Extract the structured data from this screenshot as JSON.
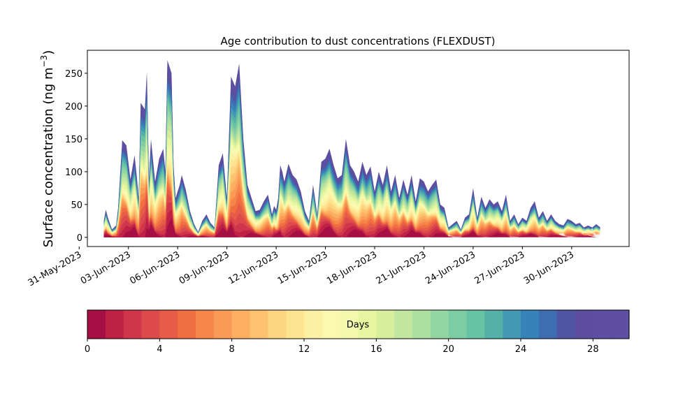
{
  "chart_data": {
    "type": "area",
    "title": "Age contribution to dust concentrations (FLEXDUST)",
    "ylabel_text": "Surface concentration (ng m",
    "ylabel_exp": "−3",
    "ylabel_close": ")",
    "xlabel": "",
    "x_axis_kind": "date",
    "xlim": [
      "2023-05-31T12:00",
      "2023-07-03T12:00"
    ],
    "ylim": [
      -14,
      285
    ],
    "yticks": [
      0,
      50,
      100,
      150,
      200,
      250
    ],
    "xticks": [
      {
        "date": "2023-05-31",
        "label": "31-May-2023"
      },
      {
        "date": "2023-06-03",
        "label": "03-Jun-2023"
      },
      {
        "date": "2023-06-06",
        "label": "06-Jun-2023"
      },
      {
        "date": "2023-06-09",
        "label": "09-Jun-2023"
      },
      {
        "date": "2023-06-12",
        "label": "12-Jun-2023"
      },
      {
        "date": "2023-06-15",
        "label": "15-Jun-2023"
      },
      {
        "date": "2023-06-18",
        "label": "18-Jun-2023"
      },
      {
        "date": "2023-06-21",
        "label": "21-Jun-2023"
      },
      {
        "date": "2023-06-24",
        "label": "24-Jun-2023"
      },
      {
        "date": "2023-06-27",
        "label": "27-Jun-2023"
      },
      {
        "date": "2023-06-30",
        "label": "30-Jun-2023"
      }
    ],
    "series_note": "stacked contributions by age; total concentration envelope listed",
    "total_dates": [
      "2023-06-01T12:00",
      "2023-06-01T15:00",
      "2023-06-01T18:00",
      "2023-06-02T00:00",
      "2023-06-02T06:00",
      "2023-06-02T09:00",
      "2023-06-02T15:00",
      "2023-06-02T21:00",
      "2023-06-03T03:00",
      "2023-06-03T09:00",
      "2023-06-03T12:00",
      "2023-06-03T15:00",
      "2023-06-03T18:00",
      "2023-06-04T00:00",
      "2023-06-04T03:00",
      "2023-06-04T06:00",
      "2023-06-04T09:00",
      "2023-06-04T15:00",
      "2023-06-04T21:00",
      "2023-06-05T03:00",
      "2023-06-05T06:00",
      "2023-06-05T09:00",
      "2023-06-05T15:00",
      "2023-06-05T18:00",
      "2023-06-05T21:00",
      "2023-06-06T03:00",
      "2023-06-06T06:00",
      "2023-06-06T12:00",
      "2023-06-06T18:00",
      "2023-06-07T00:00",
      "2023-06-07T06:00",
      "2023-06-07T12:00",
      "2023-06-07T18:00",
      "2023-06-08T00:00",
      "2023-06-08T06:00",
      "2023-06-08T12:00",
      "2023-06-08T18:00",
      "2023-06-09T00:00",
      "2023-06-09T06:00",
      "2023-06-09T12:00",
      "2023-06-09T18:00",
      "2023-06-10T00:00",
      "2023-06-10T06:00",
      "2023-06-10T12:00",
      "2023-06-10T18:00",
      "2023-06-11T00:00",
      "2023-06-11T06:00",
      "2023-06-11T12:00",
      "2023-06-11T18:00",
      "2023-06-11T21:00",
      "2023-06-12T00:00",
      "2023-06-12T03:00",
      "2023-06-12T06:00",
      "2023-06-12T09:00",
      "2023-06-12T12:00",
      "2023-06-12T18:00",
      "2023-06-13T00:00",
      "2023-06-13T06:00",
      "2023-06-13T12:00",
      "2023-06-13T18:00",
      "2023-06-14T00:00",
      "2023-06-14T06:00",
      "2023-06-14T12:00",
      "2023-06-14T18:00",
      "2023-06-15T00:00",
      "2023-06-15T06:00",
      "2023-06-15T12:00",
      "2023-06-15T18:00",
      "2023-06-16T00:00",
      "2023-06-16T06:00",
      "2023-06-16T12:00",
      "2023-06-16T18:00",
      "2023-06-17T00:00",
      "2023-06-17T06:00",
      "2023-06-17T12:00",
      "2023-06-17T18:00",
      "2023-06-18T00:00",
      "2023-06-18T06:00",
      "2023-06-18T12:00",
      "2023-06-18T18:00",
      "2023-06-19T00:00",
      "2023-06-19T06:00",
      "2023-06-19T12:00",
      "2023-06-19T18:00",
      "2023-06-20T00:00",
      "2023-06-20T06:00",
      "2023-06-20T12:00",
      "2023-06-20T18:00",
      "2023-06-21T00:00",
      "2023-06-21T06:00",
      "2023-06-21T12:00",
      "2023-06-21T18:00",
      "2023-06-22T00:00",
      "2023-06-22T06:00",
      "2023-06-22T12:00",
      "2023-06-22T18:00",
      "2023-06-23T00:00",
      "2023-06-23T06:00",
      "2023-06-23T12:00",
      "2023-06-23T18:00",
      "2023-06-24T00:00",
      "2023-06-24T06:00",
      "2023-06-24T12:00",
      "2023-06-24T18:00",
      "2023-06-25T00:00",
      "2023-06-25T06:00",
      "2023-06-25T12:00",
      "2023-06-25T18:00",
      "2023-06-26T00:00",
      "2023-06-26T06:00",
      "2023-06-26T12:00",
      "2023-06-26T18:00",
      "2023-06-27T00:00",
      "2023-06-27T06:00",
      "2023-06-27T12:00",
      "2023-06-27T18:00",
      "2023-06-28T00:00",
      "2023-06-28T06:00",
      "2023-06-28T12:00",
      "2023-06-28T18:00",
      "2023-06-29T00:00",
      "2023-06-29T06:00",
      "2023-06-29T12:00",
      "2023-06-29T18:00",
      "2023-06-30T00:00",
      "2023-06-30T06:00",
      "2023-06-30T12:00",
      "2023-06-30T18:00",
      "2023-07-01T00:00",
      "2023-07-01T06:00",
      "2023-07-01T12:00",
      "2023-07-01T18:00",
      "2023-07-02T00:00",
      "2023-07-02T06:00"
    ],
    "total_values": [
      25,
      42,
      30,
      12,
      18,
      45,
      148,
      140,
      88,
      125,
      95,
      60,
      205,
      195,
      252,
      90,
      150,
      85,
      120,
      135,
      100,
      270,
      250,
      110,
      60,
      80,
      95,
      72,
      40,
      20,
      8,
      25,
      35,
      22,
      15,
      110,
      128,
      60,
      245,
      230,
      265,
      150,
      80,
      60,
      40,
      42,
      55,
      65,
      35,
      48,
      42,
      60,
      110,
      100,
      85,
      112,
      95,
      88,
      70,
      40,
      25,
      80,
      35,
      115,
      120,
      135,
      110,
      90,
      95,
      150,
      110,
      100,
      85,
      115,
      95,
      108,
      70,
      100,
      80,
      110,
      70,
      95,
      60,
      88,
      65,
      95,
      55,
      90,
      85,
      70,
      80,
      88,
      50,
      45,
      15,
      20,
      25,
      12,
      30,
      35,
      75,
      30,
      62,
      45,
      58,
      50,
      55,
      40,
      65,
      25,
      35,
      20,
      30,
      25,
      45,
      55,
      30,
      40,
      25,
      35,
      25,
      20,
      18,
      28,
      25,
      20,
      22,
      15,
      18,
      15,
      20,
      15
    ],
    "colorbar": {
      "label": "Days",
      "min": 0,
      "max": 30,
      "ticks": [
        0,
        4,
        8,
        12,
        16,
        20,
        24,
        28
      ],
      "colors": [
        "#a50f43",
        "#bf2146",
        "#d0354b",
        "#dc4a4c",
        "#e65c47",
        "#f16e43",
        "#f68549",
        "#fa9a57",
        "#fcae61",
        "#fdc270",
        "#fed580",
        "#fee491",
        "#fef0a2",
        "#fbf8b0",
        "#f3faad",
        "#e8f6a0",
        "#d7ef9d",
        "#c2e69f",
        "#ace0a1",
        "#94d5a4",
        "#7dcca4",
        "#68c2a4",
        "#55b0a8",
        "#4398b3",
        "#3682b9",
        "#3f6db2",
        "#5255a4",
        "#5d4d9e",
        "#5e4fa2",
        "#5e4fa2"
      ]
    },
    "palette": {
      "young": "#d53e4f",
      "mid_orange": "#f46d43",
      "pale": "#fee08b",
      "green": "#abdda4",
      "teal": "#66c2a5",
      "blue": "#3288bd",
      "purple": "#5e4fa2"
    }
  }
}
